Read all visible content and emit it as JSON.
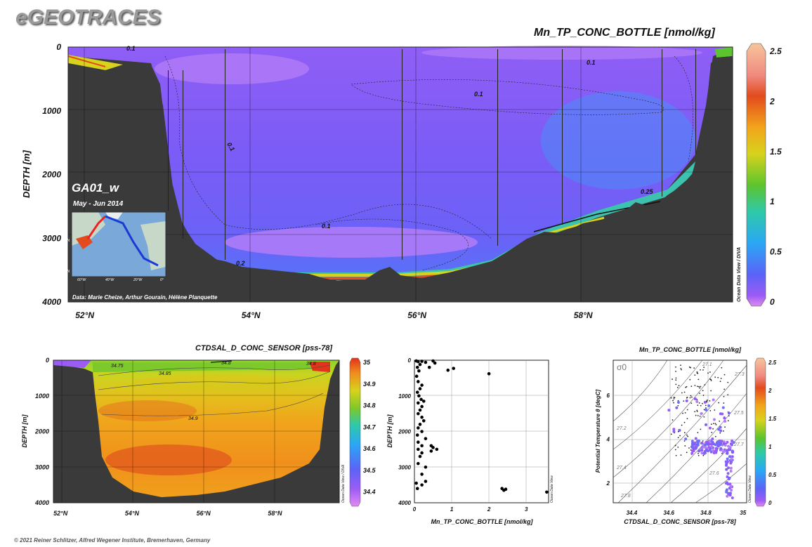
{
  "brand": "eGEOTRACES",
  "footer": "© 2021 Reiner Schlitzer, Alfred Wegener Institute, Bremerhaven, Germany",
  "odv_label": "Ocean Data View / DIVA",
  "odv_label_short": "Ocean Data View",
  "chart_data": [
    {
      "type": "heatmap",
      "id": "main-section",
      "title": "Mn_TP_CONC_BOTTLE [nmol/kg]",
      "ylabel": "DEPTH [m]",
      "x_ticks": [
        "52°N",
        "54°N",
        "56°N",
        "58°N"
      ],
      "x_tick_values": [
        52,
        54,
        56,
        58
      ],
      "xlim": [
        51.8,
        59.8
      ],
      "y_ticks": [
        0,
        1000,
        2000,
        3000,
        4000
      ],
      "ylim": [
        0,
        4000
      ],
      "colorbar_ticks": [
        0,
        0.5,
        1,
        1.5,
        2,
        2.5
      ],
      "colorbar_range": [
        0,
        2.5
      ],
      "contour_labels": [
        "0.1",
        "0.1",
        "0.1",
        "0.1",
        "0.2",
        "0.25",
        "0.1"
      ],
      "section_name": "GA01_w",
      "period": "May - Jun 2014",
      "credits": "Data: Marie Cheize, Arthur Gourain, Hélène Planquette",
      "inset_lat_labels": [
        "50°N",
        "35°N"
      ],
      "inset_lon_labels": [
        "60°W",
        "40°W",
        "20°W",
        "0°"
      ]
    },
    {
      "type": "heatmap",
      "id": "salinity-section",
      "title": "CTDSAL_D_CONC_SENSOR [pss-78]",
      "ylabel": "DEPTH [m]",
      "x_ticks": [
        "52°N",
        "54°N",
        "56°N",
        "58°N"
      ],
      "x_tick_values": [
        52,
        54,
        56,
        58
      ],
      "xlim": [
        51.8,
        59.8
      ],
      "y_ticks": [
        0,
        1000,
        2000,
        3000,
        4000
      ],
      "ylim": [
        0,
        4000
      ],
      "colorbar_ticks": [
        34.4,
        34.5,
        34.6,
        34.7,
        34.8,
        34.9,
        35
      ],
      "colorbar_range": [
        34.35,
        35
      ],
      "contour_labels": [
        "34.75",
        "34.8",
        "34.85",
        "34.9",
        "34.8"
      ]
    },
    {
      "type": "scatter",
      "id": "profile-scatter",
      "xlabel": "Mn_TP_CONC_BOTTLE [nmol/kg]",
      "ylabel": "DEPTH [m]",
      "x_ticks": [
        0,
        1,
        2,
        3
      ],
      "xlim": [
        0,
        3.6
      ],
      "y_ticks": [
        0,
        1000,
        2000,
        3000,
        4000
      ],
      "ylim": [
        0,
        4000
      ],
      "points": [
        [
          0.05,
          20
        ],
        [
          0.1,
          40
        ],
        [
          0.2,
          30
        ],
        [
          0.3,
          60
        ],
        [
          0.5,
          20
        ],
        [
          0.55,
          80
        ],
        [
          0.9,
          280
        ],
        [
          1.05,
          230
        ],
        [
          2.0,
          380
        ],
        [
          0.4,
          200
        ],
        [
          0.15,
          120
        ],
        [
          0.08,
          200
        ],
        [
          0.12,
          300
        ],
        [
          0.06,
          450
        ],
        [
          0.1,
          600
        ],
        [
          0.2,
          700
        ],
        [
          0.15,
          800
        ],
        [
          0.08,
          900
        ],
        [
          0.12,
          1000
        ],
        [
          0.18,
          1100
        ],
        [
          0.25,
          1150
        ],
        [
          0.1,
          1200
        ],
        [
          0.2,
          1300
        ],
        [
          0.15,
          1400
        ],
        [
          0.1,
          1500
        ],
        [
          0.2,
          1600
        ],
        [
          0.25,
          1700
        ],
        [
          0.15,
          1800
        ],
        [
          0.1,
          1900
        ],
        [
          0.2,
          2000
        ],
        [
          0.08,
          2100
        ],
        [
          0.3,
          2200
        ],
        [
          0.1,
          2300
        ],
        [
          0.2,
          2400
        ],
        [
          0.45,
          2400
        ],
        [
          0.5,
          2450
        ],
        [
          0.1,
          2500
        ],
        [
          0.6,
          2500
        ],
        [
          0.45,
          2550
        ],
        [
          0.2,
          2600
        ],
        [
          0.15,
          2700
        ],
        [
          0.1,
          2900
        ],
        [
          0.3,
          3000
        ],
        [
          0.2,
          3200
        ],
        [
          0.3,
          3400
        ],
        [
          0.2,
          3500
        ],
        [
          0.08,
          3600
        ],
        [
          2.35,
          3600
        ],
        [
          2.45,
          3620
        ],
        [
          2.4,
          3650
        ],
        [
          3.55,
          3700
        ],
        [
          0.05,
          3450
        ]
      ]
    },
    {
      "type": "scatter",
      "id": "ts-diagram",
      "title": "Mn_TP_CONC_BOTTLE [nmol/kg]",
      "xlabel": "CTDSAL_D_CONC_SENSOR [pss-78]",
      "ylabel": "Potential Temperature θ [degC]",
      "x_ticks": [
        34.4,
        34.6,
        34.8,
        35
      ],
      "xlim": [
        34.3,
        35.02
      ],
      "y_ticks": [
        2,
        4,
        6
      ],
      "ylim": [
        1.1,
        7.6
      ],
      "sigma_label": "σ0",
      "isopycnal_labels": [
        "27.1",
        "27.2",
        "27.3",
        "27.4",
        "27.5",
        "27.6",
        "27.7",
        "27.8"
      ],
      "colorbar_ticks": [
        0,
        0.5,
        1,
        1.5,
        2,
        2.5
      ],
      "colorbar_range": [
        0,
        2.5
      ]
    }
  ]
}
